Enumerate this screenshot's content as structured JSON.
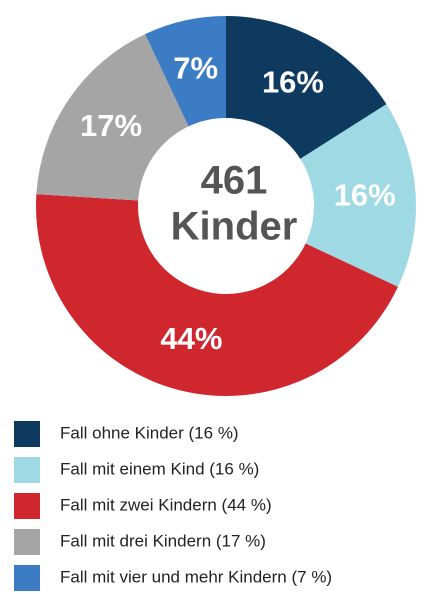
{
  "chart_data": {
    "type": "donut",
    "total": 461,
    "total_label": "Kinder",
    "categories": [
      "Fall ohne Kinder (16 %)",
      "Fall mit einem Kind (16 %)",
      "Fall mit zwei Kindern (44 %)",
      "Fall mit drei Kindern (17 %)",
      "Fall mit vier und mehr Kindern (7 %)"
    ],
    "values": [
      16,
      16,
      44,
      17,
      7
    ],
    "value_labels": [
      "16%",
      "16%",
      "44%",
      "17%",
      "7%"
    ],
    "colors": [
      "#0f3a5f",
      "#9fd9e3",
      "#d0262e",
      "#a5a5a5",
      "#3b7cc4"
    ]
  }
}
